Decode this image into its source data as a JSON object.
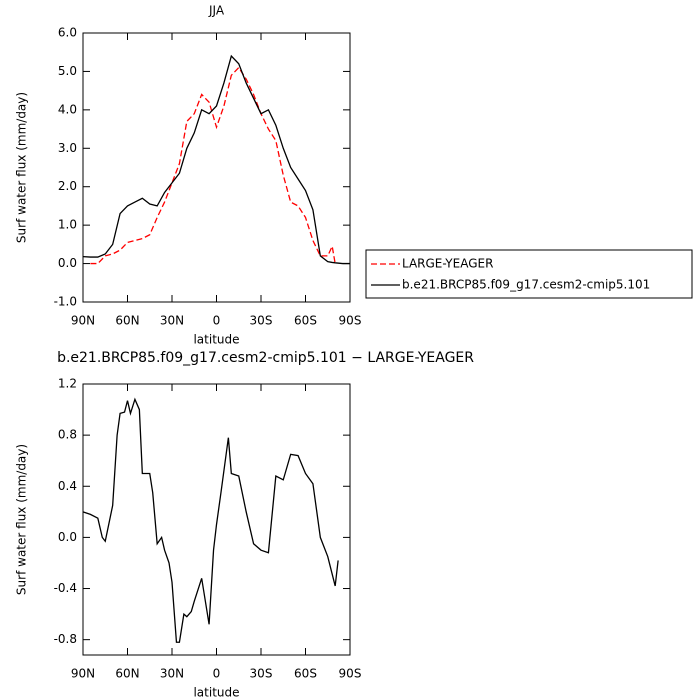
{
  "chart_data": [
    {
      "type": "line",
      "title": "JJA",
      "xlabel": "latitude",
      "ylabel": "Surf water flux (mm/day)",
      "x": [
        90,
        85,
        80,
        75,
        70,
        65,
        60,
        55,
        50,
        45,
        40,
        35,
        30,
        25,
        20,
        15,
        10,
        5,
        0,
        -5,
        -10,
        -15,
        -20,
        -25,
        -30,
        -35,
        -40,
        -45,
        -50,
        -55,
        -60,
        -65,
        -70,
        -75,
        -78,
        -80,
        -85,
        -90
      ],
      "series": [
        {
          "name": "LARGE-YEAGER",
          "color": "#ff0000",
          "dash": true,
          "values": [
            null,
            0.0,
            0.0,
            0.2,
            0.25,
            0.35,
            0.55,
            0.6,
            0.65,
            0.75,
            1.2,
            1.6,
            2.1,
            2.6,
            3.7,
            3.9,
            4.4,
            4.2,
            3.55,
            4.1,
            4.9,
            5.1,
            4.8,
            4.4,
            3.9,
            3.5,
            3.2,
            2.3,
            1.6,
            1.5,
            1.2,
            0.6,
            0.2,
            0.2,
            0.45,
            0.0,
            null,
            null
          ]
        },
        {
          "name": "b.e21.BRCP85.f09_g17.cesm2-cmip5.101",
          "color": "#000000",
          "dash": false,
          "values": [
            0.18,
            0.17,
            0.17,
            0.25,
            0.5,
            1.3,
            1.5,
            1.6,
            1.7,
            1.55,
            1.5,
            1.85,
            2.1,
            2.35,
            3.0,
            3.4,
            4.0,
            3.9,
            4.1,
            4.7,
            5.4,
            5.2,
            4.7,
            4.3,
            3.9,
            4.0,
            3.6,
            3.0,
            2.5,
            2.2,
            1.9,
            1.4,
            0.2,
            0.05,
            0.03,
            0.02,
            0.0,
            0.0
          ]
        }
      ],
      "xlim": [
        90,
        -90
      ],
      "xticks": [
        {
          "value": 90,
          "label": "90N"
        },
        {
          "value": 60,
          "label": "60N"
        },
        {
          "value": 30,
          "label": "30N"
        },
        0,
        {
          "value": -30,
          "label": "30S"
        },
        {
          "value": -60,
          "label": "60S"
        },
        {
          "value": -90,
          "label": "90S"
        }
      ],
      "ylim": [
        -1.0,
        6.0
      ],
      "yticks": [
        {
          "value": -1,
          "label": "-1.0"
        },
        {
          "value": 0,
          "label": "0.0"
        },
        {
          "value": 1,
          "label": "1.0"
        },
        {
          "value": 2,
          "label": "2.0"
        },
        {
          "value": 3,
          "label": "3.0"
        },
        {
          "value": 4,
          "label": "4.0"
        },
        {
          "value": 5,
          "label": "5.0"
        },
        {
          "value": 6,
          "label": "6.0"
        }
      ],
      "legend": "right"
    },
    {
      "type": "line",
      "title": "b.e21.BRCP85.f09_g17.cesm2-cmip5.101 − LARGE-YEAGER",
      "xlabel": "latitude",
      "ylabel": "Surf water flux (mm/day)",
      "x": [
        90,
        85,
        80,
        77,
        75,
        70,
        67,
        65,
        62,
        60,
        58,
        55,
        52,
        50,
        45,
        43,
        40,
        37,
        35,
        32,
        30,
        27,
        25,
        22,
        20,
        17,
        15,
        10,
        5,
        2,
        0,
        -3,
        -8,
        -10,
        -15,
        -20,
        -25,
        -30,
        -35,
        -40,
        -45,
        -50,
        -55,
        -60,
        -65,
        -70,
        -75,
        -80,
        -82
      ],
      "series": [
        {
          "color": "#000000",
          "dash": false,
          "values": [
            0.2,
            0.18,
            0.15,
            0.0,
            -0.03,
            0.25,
            0.8,
            0.97,
            0.98,
            1.07,
            0.97,
            1.08,
            1.0,
            0.5,
            0.5,
            0.35,
            -0.05,
            0.0,
            -0.1,
            -0.2,
            -0.35,
            -0.82,
            -0.82,
            -0.6,
            -0.62,
            -0.58,
            -0.5,
            -0.32,
            -0.68,
            -0.1,
            0.1,
            0.35,
            0.78,
            0.5,
            0.48,
            0.2,
            -0.05,
            -0.1,
            -0.12,
            0.48,
            0.45,
            0.65,
            0.64,
            0.5,
            0.42,
            0.0,
            -0.15,
            -0.38,
            -0.18
          ]
        }
      ],
      "xlim": [
        90,
        -90
      ],
      "xticks": [
        {
          "value": 90,
          "label": "90N"
        },
        {
          "value": 60,
          "label": "60N"
        },
        {
          "value": 30,
          "label": "30N"
        },
        0,
        {
          "value": -30,
          "label": "30S"
        },
        {
          "value": -60,
          "label": "60S"
        },
        {
          "value": -90,
          "label": "90S"
        }
      ],
      "ylim": [
        -0.92,
        1.2
      ],
      "yticks": [
        -0.8,
        -0.4,
        {
          "value": 0,
          "label": "0.0"
        },
        0.4,
        0.8,
        1.2
      ]
    }
  ]
}
